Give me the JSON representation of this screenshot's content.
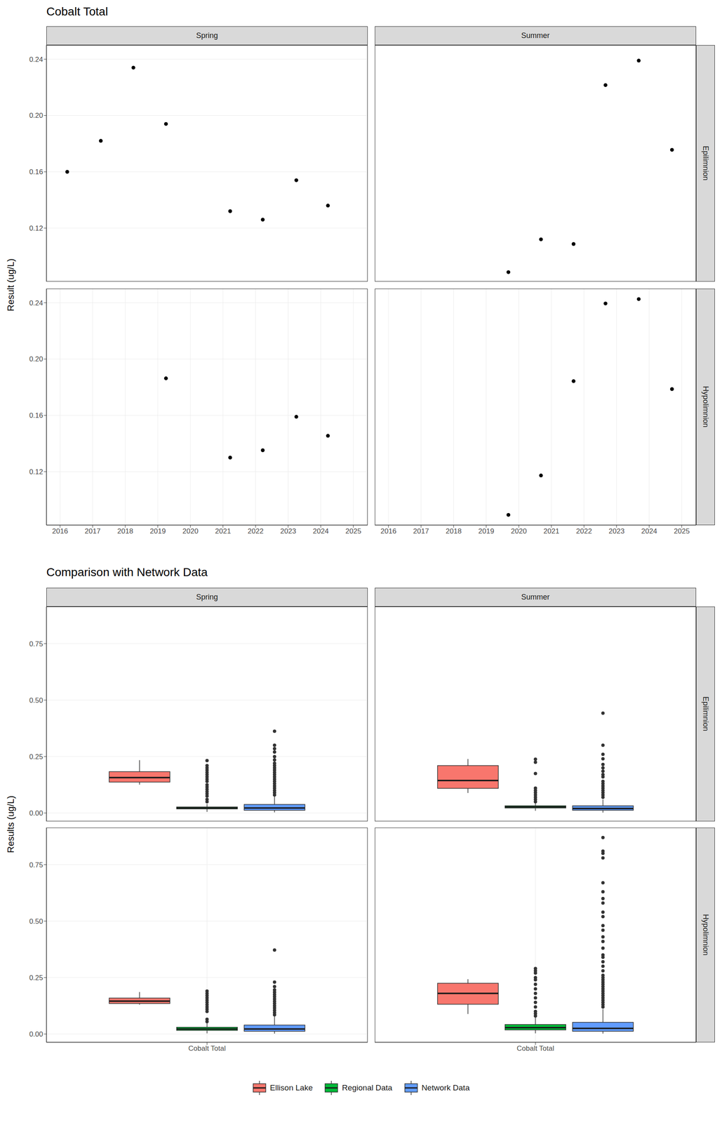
{
  "chart_data": [
    {
      "type": "scatter",
      "title": "Cobalt Total",
      "ylabel": "Result (ug/L)",
      "columns": [
        "Spring",
        "Summer"
      ],
      "rows": [
        "Epilimnion",
        "Hypolimnion"
      ],
      "xlim": [
        2015.58,
        2025.44
      ],
      "xticks": [
        2016,
        2017,
        2018,
        2019,
        2020,
        2021,
        2022,
        2023,
        2024,
        2025
      ],
      "ylim": [
        0.082,
        0.25
      ],
      "yticks": [
        0.12,
        0.16,
        {
          "value": 0.2,
          "label": "0.20"
        },
        0.24
      ],
      "grid": true,
      "color": "#000000",
      "panels": [
        {
          "column": "Spring",
          "row": "Epilimnion",
          "x": [
            2016.22,
            2017.25,
            2018.25,
            2019.25,
            2021.22,
            2022.22,
            2023.25,
            2024.22
          ],
          "values": [
            0.16,
            0.182,
            0.234,
            0.194,
            0.132,
            0.126,
            0.154,
            0.136
          ]
        },
        {
          "column": "Summer",
          "row": "Epilimnion",
          "x": [
            2019.68,
            2020.68,
            2021.68,
            2022.66,
            2023.68,
            2024.7
          ],
          "values": [
            0.0887,
            0.112,
            0.1087,
            0.2216,
            0.239,
            0.1756
          ]
        },
        {
          "column": "Spring",
          "row": "Hypolimnion",
          "x": [
            2019.25,
            2021.22,
            2022.22,
            2023.25,
            2024.22
          ],
          "values": [
            0.1863,
            0.13,
            0.1352,
            0.159,
            0.1455
          ]
        },
        {
          "column": "Summer",
          "row": "Hypolimnion",
          "x": [
            2019.68,
            2020.68,
            2021.68,
            2022.66,
            2023.68,
            2024.7
          ],
          "values": [
            0.0893,
            0.1173,
            0.1843,
            0.2395,
            0.2426,
            0.1787
          ]
        }
      ]
    },
    {
      "type": "boxplot",
      "title": "Comparison with Network Data",
      "ylabel": "Results (ug/L)",
      "categories": [
        "Cobalt Total"
      ],
      "columns": [
        "Spring",
        "Summer"
      ],
      "rows": [
        "Epilimnion",
        "Hypolimnion"
      ],
      "ylim": [
        -0.037,
        0.914
      ],
      "yticks": [
        {
          "value": 0,
          "label": "0.00"
        },
        0.25,
        {
          "value": 0.5,
          "label": "0.50"
        },
        0.75
      ],
      "grid": true,
      "legend": "bottom",
      "series": [
        {
          "name": "Ellison Lake",
          "color": "#F8766D"
        },
        {
          "name": "Regional Data",
          "color": "#00BA38"
        },
        {
          "name": "Network Data",
          "color": "#619CFF"
        }
      ],
      "panels": [
        {
          "column": "Spring",
          "row": "Epilimnion",
          "boxes": [
            {
              "whisker_low": 0.126,
              "q1": 0.137,
              "median": 0.157,
              "q3": 0.183,
              "whisker_high": 0.234,
              "outliers": []
            },
            {
              "whisker_low": 0.005,
              "q1": 0.018,
              "median": 0.022,
              "q3": 0.027,
              "whisker_high": 0.04,
              "outliers": [
                0.05,
                0.06,
                0.075,
                0.085,
                0.095,
                0.105,
                0.115,
                0.125,
                0.14,
                0.15,
                0.16,
                0.17,
                0.18,
                0.19,
                0.2,
                0.21,
                0.232
              ]
            },
            {
              "whisker_low": 0.003,
              "q1": 0.012,
              "median": 0.022,
              "q3": 0.038,
              "whisker_high": 0.075,
              "outliers": [
                0.08,
                0.09,
                0.1,
                0.11,
                0.12,
                0.13,
                0.14,
                0.15,
                0.16,
                0.17,
                0.18,
                0.19,
                0.2,
                0.21,
                0.22,
                0.235,
                0.25,
                0.27,
                0.285,
                0.3,
                0.362
              ]
            }
          ]
        },
        {
          "column": "Summer",
          "row": "Epilimnion",
          "boxes": [
            {
              "whisker_low": 0.089,
              "q1": 0.109,
              "median": 0.144,
              "q3": 0.21,
              "whisker_high": 0.239,
              "outliers": []
            },
            {
              "whisker_low": 0.01,
              "q1": 0.022,
              "median": 0.027,
              "q3": 0.032,
              "whisker_high": 0.045,
              "outliers": [
                0.05,
                0.06,
                0.07,
                0.08,
                0.09,
                0.1,
                0.11,
                0.175,
                0.225,
                0.238
              ]
            },
            {
              "whisker_low": 0.002,
              "q1": 0.012,
              "median": 0.02,
              "q3": 0.032,
              "whisker_high": 0.06,
              "outliers": [
                0.07,
                0.08,
                0.09,
                0.1,
                0.11,
                0.12,
                0.13,
                0.14,
                0.16,
                0.17,
                0.185,
                0.2,
                0.215,
                0.24,
                0.26,
                0.3,
                0.442
              ]
            }
          ]
        },
        {
          "column": "Spring",
          "row": "Hypolimnion",
          "boxes": [
            {
              "whisker_low": 0.13,
              "q1": 0.135,
              "median": 0.1455,
              "q3": 0.159,
              "whisker_high": 0.186,
              "outliers": []
            },
            {
              "whisker_low": 0.003,
              "q1": 0.016,
              "median": 0.022,
              "q3": 0.03,
              "whisker_high": 0.05,
              "outliers": [
                0.055,
                0.065,
                0.1,
                0.11,
                0.12,
                0.13,
                0.14,
                0.15,
                0.16,
                0.17,
                0.18,
                0.19
              ]
            },
            {
              "whisker_low": 0.002,
              "q1": 0.012,
              "median": 0.022,
              "q3": 0.04,
              "whisker_high": 0.08,
              "outliers": [
                0.085,
                0.095,
                0.105,
                0.115,
                0.125,
                0.135,
                0.145,
                0.155,
                0.165,
                0.175,
                0.185,
                0.195,
                0.21,
                0.23,
                0.372
              ]
            }
          ]
        },
        {
          "column": "Summer",
          "row": "Hypolimnion",
          "boxes": [
            {
              "whisker_low": 0.089,
              "q1": 0.132,
              "median": 0.18,
              "q3": 0.225,
              "whisker_high": 0.243,
              "outliers": []
            },
            {
              "whisker_low": 0.003,
              "q1": 0.018,
              "median": 0.028,
              "q3": 0.042,
              "whisker_high": 0.075,
              "outliers": [
                0.08,
                0.09,
                0.1,
                0.12,
                0.14,
                0.16,
                0.18,
                0.2,
                0.22,
                0.24,
                0.25,
                0.27,
                0.28,
                0.29
              ]
            },
            {
              "whisker_low": 0.002,
              "q1": 0.012,
              "median": 0.025,
              "q3": 0.052,
              "whisker_high": 0.11,
              "outliers": [
                0.12,
                0.13,
                0.14,
                0.15,
                0.16,
                0.17,
                0.18,
                0.19,
                0.2,
                0.21,
                0.22,
                0.23,
                0.24,
                0.25,
                0.26,
                0.28,
                0.3,
                0.32,
                0.34,
                0.35,
                0.38,
                0.41,
                0.43,
                0.46,
                0.48,
                0.52,
                0.54,
                0.58,
                0.6,
                0.63,
                0.67,
                0.78,
                0.8,
                0.81,
                0.87
              ]
            }
          ]
        }
      ]
    }
  ]
}
